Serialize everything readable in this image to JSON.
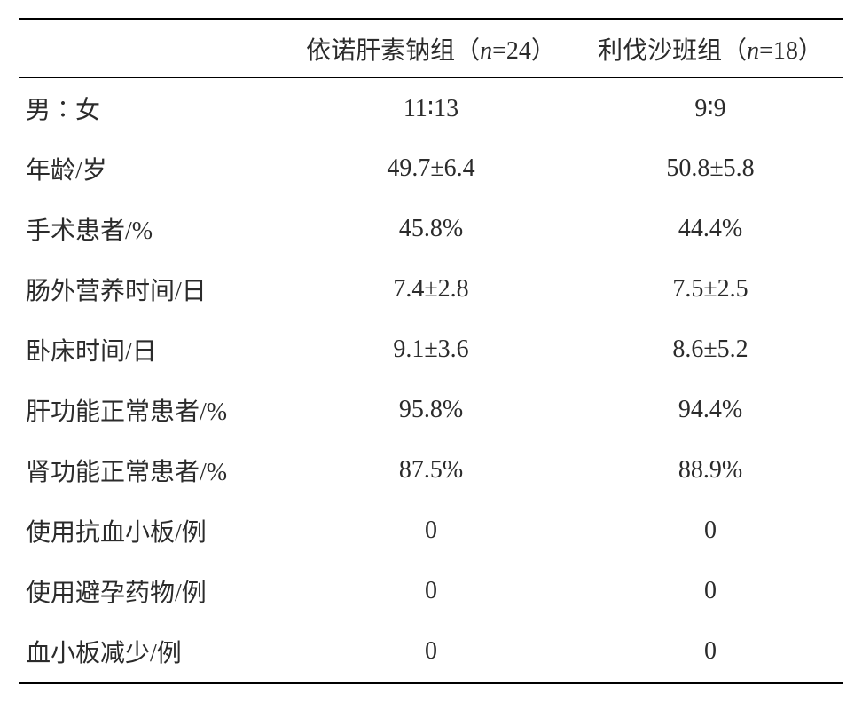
{
  "table": {
    "type": "table",
    "background_color": "#ffffff",
    "text_color": "#2b2b2b",
    "border_color": "#000000",
    "border_top_width": 3,
    "border_header_width": 1.5,
    "border_bottom_width": 3,
    "font_size": 28,
    "header": {
      "col0": "",
      "col1_prefix": "依诺肝素钠组",
      "col1_paren_open": "（",
      "col1_var": "n",
      "col1_eq": "=24",
      "col1_paren_close": "）",
      "col2_prefix": "利伐沙班组",
      "col2_paren_open": "（",
      "col2_var": "n",
      "col2_eq": "=18",
      "col2_paren_close": "）"
    },
    "rows": [
      {
        "label": "男∶女",
        "c1_a": "11",
        "c1_sep": "∶",
        "c1_b": "13",
        "c2_a": "9",
        "c2_sep": "∶",
        "c2_b": "9",
        "ratio": true
      },
      {
        "label": "年龄/岁",
        "c1": "49.7±6.4",
        "c2": "50.8±5.8"
      },
      {
        "label": "手术患者/%",
        "c1": "45.8%",
        "c2": "44.4%"
      },
      {
        "label": "肠外营养时间/日",
        "c1": "7.4±2.8",
        "c2": "7.5±2.5"
      },
      {
        "label": "卧床时间/日",
        "c1": "9.1±3.6",
        "c2": "8.6±5.2"
      },
      {
        "label": "肝功能正常患者/%",
        "c1": "95.8%",
        "c2": "94.4%"
      },
      {
        "label": "肾功能正常患者/%",
        "c1": "87.5%",
        "c2": "88.9%"
      },
      {
        "label": "使用抗血小板/例",
        "c1": "0",
        "c2": "0"
      },
      {
        "label": "使用避孕药物/例",
        "c1": "0",
        "c2": "0"
      },
      {
        "label": "血小板减少/例",
        "c1": "0",
        "c2": "0"
      }
    ]
  }
}
